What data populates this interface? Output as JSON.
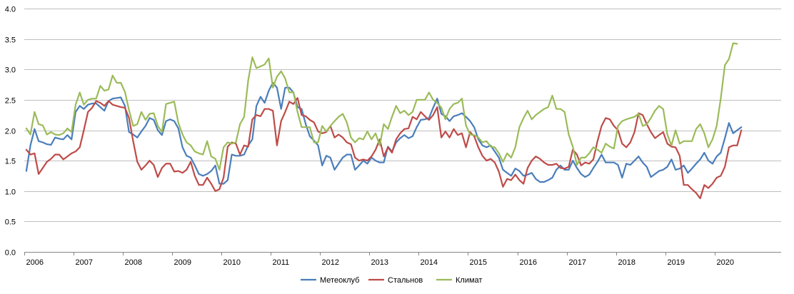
{
  "chart_data": {
    "type": "line",
    "y_ticks": [
      "0.0",
      "0.5",
      "1.0",
      "1.5",
      "2.0",
      "2.5",
      "3.0",
      "3.5",
      "4.0"
    ],
    "x_ticks": [
      "2006",
      "2007",
      "2008",
      "2009",
      "2010",
      "2011",
      "2012",
      "2013",
      "2014",
      "2015",
      "2016",
      "2017",
      "2018",
      "2019",
      "2020"
    ],
    "ylim": [
      0,
      4
    ],
    "grid": true,
    "legend_position": "bottom",
    "x_start_year": 2006,
    "series": [
      {
        "name": "Метеоклуб",
        "color": "#4a7ebb",
        "values": [
          1.33,
          1.75,
          2.02,
          1.82,
          1.8,
          1.77,
          1.76,
          1.88,
          1.86,
          1.85,
          1.92,
          1.85,
          2.3,
          2.4,
          2.35,
          2.42,
          2.44,
          2.44,
          2.38,
          2.32,
          2.48,
          2.52,
          2.53,
          2.54,
          2.4,
          1.97,
          1.93,
          1.88,
          1.98,
          2.07,
          2.2,
          2.17,
          2.0,
          1.92,
          2.15,
          2.18,
          2.15,
          2.03,
          1.72,
          1.58,
          1.55,
          1.42,
          1.28,
          1.25,
          1.28,
          1.33,
          1.42,
          1.12,
          1.12,
          1.18,
          1.6,
          1.58,
          1.58,
          1.6,
          1.75,
          1.85,
          2.4,
          2.55,
          2.45,
          2.65,
          2.78,
          2.7,
          2.35,
          2.7,
          2.7,
          2.62,
          2.38,
          2.35,
          2.1,
          1.9,
          1.83,
          1.75,
          1.42,
          1.58,
          1.55,
          1.35,
          1.45,
          1.55,
          1.6,
          1.6,
          1.35,
          1.42,
          1.5,
          1.45,
          1.55,
          1.5,
          1.47,
          1.47,
          1.73,
          1.65,
          1.8,
          1.87,
          1.92,
          1.87,
          1.9,
          2.05,
          2.17,
          2.18,
          2.2,
          2.37,
          2.52,
          2.27,
          2.23,
          2.15,
          2.23,
          2.25,
          2.28,
          2.22,
          2.15,
          2.05,
          1.85,
          1.75,
          1.72,
          1.75,
          1.65,
          1.55,
          1.35,
          1.3,
          1.25,
          1.37,
          1.33,
          1.25,
          1.27,
          1.3,
          1.2,
          1.15,
          1.15,
          1.18,
          1.22,
          1.35,
          1.42,
          1.35,
          1.35,
          1.5,
          1.38,
          1.28,
          1.23,
          1.27,
          1.38,
          1.48,
          1.6,
          1.47,
          1.47,
          1.47,
          1.43,
          1.22,
          1.45,
          1.43,
          1.5,
          1.57,
          1.47,
          1.4,
          1.23,
          1.28,
          1.33,
          1.35,
          1.4,
          1.52,
          1.35,
          1.37,
          1.42,
          1.3,
          1.37,
          1.45,
          1.52,
          1.63,
          1.5,
          1.45,
          1.57,
          1.63,
          1.87,
          2.12,
          1.95,
          2.0,
          2.05
        ]
      },
      {
        "name": "Стальнов",
        "color": "#be4b48",
        "values": [
          1.68,
          1.6,
          1.62,
          1.28,
          1.38,
          1.48,
          1.53,
          1.6,
          1.6,
          1.52,
          1.57,
          1.62,
          1.65,
          1.72,
          2.0,
          2.3,
          2.37,
          2.48,
          2.45,
          2.4,
          2.48,
          2.42,
          2.4,
          2.38,
          2.37,
          2.2,
          1.82,
          1.48,
          1.35,
          1.42,
          1.5,
          1.43,
          1.23,
          1.38,
          1.45,
          1.45,
          1.32,
          1.33,
          1.3,
          1.35,
          1.48,
          1.25,
          1.1,
          1.1,
          1.22,
          1.12,
          1.0,
          1.03,
          1.22,
          1.73,
          1.8,
          1.78,
          1.6,
          1.75,
          1.73,
          2.18,
          2.25,
          2.23,
          2.35,
          2.35,
          2.32,
          1.75,
          2.15,
          2.3,
          2.47,
          2.43,
          2.53,
          2.25,
          2.23,
          2.17,
          2.13,
          1.98,
          1.95,
          1.97,
          2.07,
          1.88,
          1.93,
          1.88,
          1.8,
          1.77,
          1.55,
          1.5,
          1.52,
          1.5,
          1.57,
          1.68,
          1.85,
          1.57,
          1.72,
          1.63,
          1.85,
          1.95,
          2.02,
          2.03,
          2.22,
          2.18,
          2.3,
          2.23,
          2.17,
          2.25,
          2.38,
          1.88,
          1.98,
          1.88,
          2.02,
          1.92,
          1.95,
          1.72,
          1.97,
          1.9,
          1.72,
          1.58,
          1.5,
          1.53,
          1.47,
          1.32,
          1.07,
          1.2,
          1.18,
          1.27,
          1.18,
          1.12,
          1.38,
          1.5,
          1.57,
          1.53,
          1.47,
          1.43,
          1.43,
          1.45,
          1.38,
          1.37,
          1.4,
          1.68,
          1.6,
          1.42,
          1.47,
          1.45,
          1.52,
          1.82,
          2.07,
          2.2,
          2.18,
          2.07,
          2.0,
          1.78,
          1.72,
          1.8,
          1.97,
          2.28,
          2.25,
          2.1,
          1.97,
          1.87,
          1.92,
          1.97,
          1.78,
          1.73,
          1.72,
          1.58,
          1.1,
          1.1,
          1.03,
          0.97,
          0.88,
          1.1,
          1.05,
          1.12,
          1.22,
          1.25,
          1.4,
          1.72,
          1.75,
          1.75,
          2.0
        ]
      },
      {
        "name": "Климат",
        "color": "#9bbb59",
        "values": [
          2.03,
          1.93,
          2.3,
          2.1,
          2.08,
          1.93,
          1.97,
          1.93,
          1.92,
          1.95,
          2.03,
          1.97,
          2.42,
          2.62,
          2.42,
          2.5,
          2.52,
          2.52,
          2.73,
          2.65,
          2.67,
          2.9,
          2.78,
          2.78,
          2.63,
          2.33,
          2.07,
          2.1,
          2.3,
          2.17,
          2.27,
          2.28,
          2.07,
          1.97,
          2.43,
          2.45,
          2.47,
          2.12,
          1.93,
          1.8,
          1.75,
          1.65,
          1.62,
          1.6,
          1.82,
          1.57,
          1.53,
          1.35,
          1.72,
          1.8,
          1.78,
          1.8,
          2.1,
          2.22,
          2.82,
          3.2,
          3.02,
          3.05,
          3.08,
          3.18,
          2.7,
          2.88,
          2.97,
          2.85,
          2.62,
          2.63,
          2.3,
          2.05,
          2.05,
          2.05,
          1.8,
          1.8,
          2.07,
          1.98,
          2.07,
          2.15,
          2.22,
          2.27,
          2.13,
          1.88,
          1.8,
          1.87,
          1.85,
          1.98,
          1.85,
          1.95,
          1.75,
          2.1,
          2.02,
          2.22,
          2.4,
          2.28,
          2.32,
          2.25,
          2.3,
          2.5,
          2.5,
          2.5,
          2.62,
          2.5,
          2.45,
          2.37,
          2.18,
          2.35,
          2.43,
          2.45,
          2.52,
          2.08,
          1.93,
          1.92,
          1.88,
          1.8,
          1.82,
          1.73,
          1.72,
          1.62,
          1.48,
          1.62,
          1.55,
          1.72,
          2.05,
          2.2,
          2.32,
          2.18,
          2.25,
          2.3,
          2.35,
          2.38,
          2.57,
          2.35,
          2.35,
          2.3,
          1.93,
          1.73,
          1.43,
          1.55,
          1.55,
          1.62,
          1.72,
          1.68,
          1.63,
          1.78,
          1.73,
          1.7,
          2.07,
          2.15,
          2.18,
          2.2,
          2.22,
          2.27,
          2.07,
          2.1,
          2.2,
          2.32,
          2.4,
          2.35,
          1.93,
          1.75,
          2.0,
          1.78,
          1.82,
          1.82,
          1.82,
          2.02,
          2.1,
          1.95,
          1.72,
          1.85,
          2.07,
          2.52,
          3.07,
          3.17,
          3.43,
          3.42
        ]
      }
    ]
  }
}
